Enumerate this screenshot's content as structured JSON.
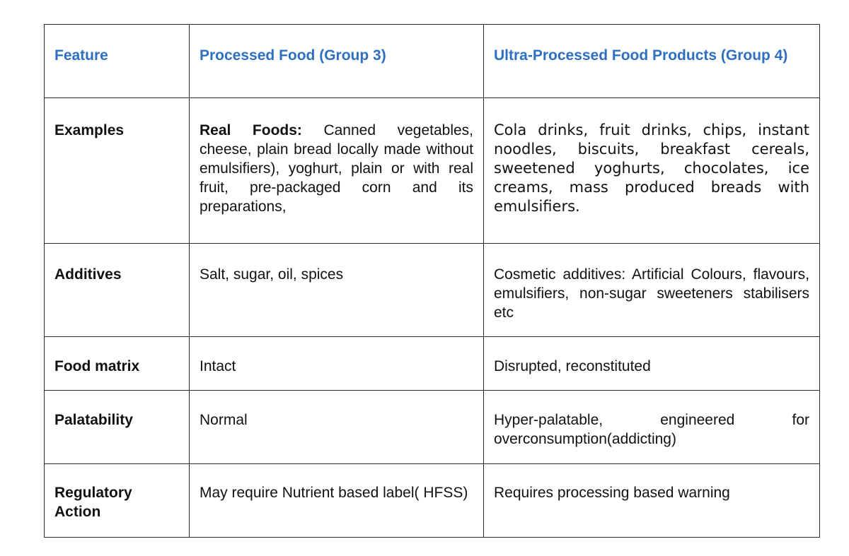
{
  "header": {
    "feature": "Feature",
    "group3": "Processed Food (Group 3)",
    "group4": "Ultra-Processed Food Products (Group 4)"
  },
  "rows": [
    {
      "feature": "Examples",
      "group3_prefix": "Real Foods:",
      "group3": " Canned vegetables, cheese, plain bread locally made without emulsifiers), yoghurt, plain or with real fruit, pre-packaged corn and its preparations,",
      "group4": "Cola drinks, fruit drinks, chips, instant noodles, biscuits, breakfast cereals, sweetened yoghurts, chocolates, ice creams, mass produced breads with emulsifiers."
    },
    {
      "feature": "Additives",
      "group3": "Salt, sugar, oil, spices",
      "group4": "Cosmetic additives: Artificial Colours, flavours, emulsifiers, non-sugar sweeteners stabilisers etc"
    },
    {
      "feature": "Food matrix",
      "group3": "Intact",
      "group4": "Disrupted, reconstituted"
    },
    {
      "feature": "Palatability",
      "group3": "Normal",
      "group4_line1": "Hyper-palatable, engineered for",
      "group4_line2": "overconsumption(addicting)"
    },
    {
      "feature": "Regulatory Action",
      "group3": "May require Nutrient based label( HFSS)",
      "group4": "Requires processing based warning"
    }
  ]
}
